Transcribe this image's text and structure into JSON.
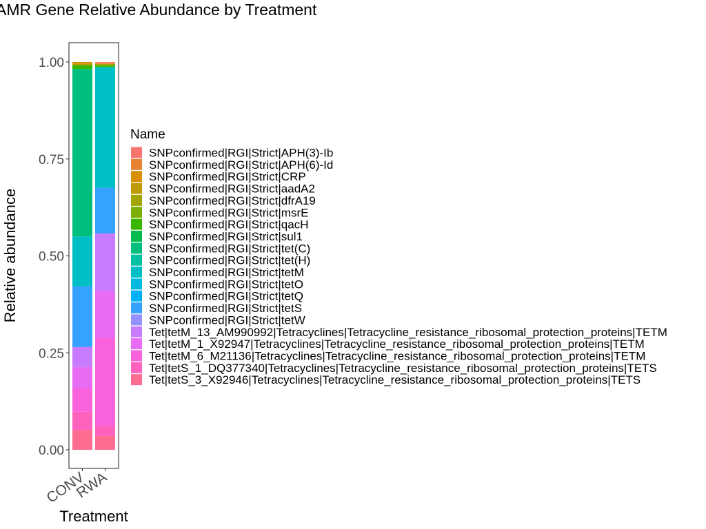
{
  "chart_data": {
    "type": "bar",
    "stacked": true,
    "title": "AMR Gene Relative Abundance by Treatment",
    "xlabel": "Treatment",
    "ylabel": "Relative abundance",
    "categories": [
      "CONV",
      "RWA"
    ],
    "ylim": [
      0,
      1
    ],
    "yticks": [
      "0.00",
      "0.25",
      "0.50",
      "0.75",
      "1.00"
    ],
    "ytick_values": [
      0,
      0.25,
      0.5,
      0.75,
      1.0
    ],
    "legend_title": "Name",
    "legend_position": "right",
    "grid": false,
    "series": [
      {
        "name": "SNPconfirmed|RGI|Strict|APH(3)-Ib",
        "color": "#F8766D",
        "values": [
          0.0,
          0.002
        ]
      },
      {
        "name": "SNPconfirmed|RGI|Strict|APH(6)-Id",
        "color": "#EA8331",
        "values": [
          0.0,
          0.003
        ]
      },
      {
        "name": "SNPconfirmed|RGI|Strict|CRP",
        "color": "#D89000",
        "values": [
          0.004,
          0.0
        ]
      },
      {
        "name": "SNPconfirmed|RGI|Strict|aadA2",
        "color": "#C09B00",
        "values": [
          0.004,
          0.0
        ]
      },
      {
        "name": "SNPconfirmed|RGI|Strict|dfrA19",
        "color": "#A3A500",
        "values": [
          0.0,
          0.004
        ]
      },
      {
        "name": "SNPconfirmed|RGI|Strict|msrE",
        "color": "#7CAE00",
        "values": [
          0.0,
          0.0
        ]
      },
      {
        "name": "SNPconfirmed|RGI|Strict|qacH",
        "color": "#39B600",
        "values": [
          0.01,
          0.004
        ]
      },
      {
        "name": "SNPconfirmed|RGI|Strict|sul1",
        "color": "#00BB4E",
        "values": [
          0.0,
          0.0
        ]
      },
      {
        "name": "SNPconfirmed|RGI|Strict|tet(C)",
        "color": "#00BF7D",
        "values": [
          0.432,
          0.0
        ]
      },
      {
        "name": "SNPconfirmed|RGI|Strict|tet(H)",
        "color": "#00C1A3",
        "values": [
          0.0,
          0.0
        ]
      },
      {
        "name": "SNPconfirmed|RGI|Strict|tetM",
        "color": "#00BFC4",
        "values": [
          0.128,
          0.311
        ]
      },
      {
        "name": "SNPconfirmed|RGI|Strict|tetO",
        "color": "#00BAE0",
        "values": [
          0.0,
          0.0
        ]
      },
      {
        "name": "SNPconfirmed|RGI|Strict|tetQ",
        "color": "#00B0F6",
        "values": [
          0.0,
          0.0
        ]
      },
      {
        "name": "SNPconfirmed|RGI|Strict|tetS",
        "color": "#35A2FF",
        "values": [
          0.157,
          0.118
        ]
      },
      {
        "name": "SNPconfirmed|RGI|Strict|tetW",
        "color": "#9590FF",
        "values": [
          0.0,
          0.0
        ]
      },
      {
        "name": "Tet|tetM_13_AM990992|Tetracyclines|Tetracycline_resistance_ribosomal_protection_proteins|TETM",
        "color": "#C77CFF",
        "values": [
          0.052,
          0.148
        ]
      },
      {
        "name": "Tet|tetM_1_X92947|Tetracyclines|Tetracycline_resistance_ribosomal_protection_proteins|TETM",
        "color": "#E76BF3",
        "values": [
          0.055,
          0.122
        ]
      },
      {
        "name": "Tet|tetM_6_M21136|Tetracyclines|Tetracycline_resistance_ribosomal_protection_proteins|TETM",
        "color": "#FA62DB",
        "values": [
          0.06,
          0.227
        ]
      },
      {
        "name": "Tet|tetS_1_DQ377340|Tetracyclines|Tetracycline_resistance_ribosomal_protection_proteins|TETS",
        "color": "#FF62BC",
        "values": [
          0.047,
          0.025
        ]
      },
      {
        "name": "Tet|tetS_3_X92946|Tetracyclines|Tetracycline_resistance_ribosomal_protection_proteins|TETS",
        "color": "#FF6C91",
        "values": [
          0.051,
          0.036
        ]
      }
    ]
  }
}
